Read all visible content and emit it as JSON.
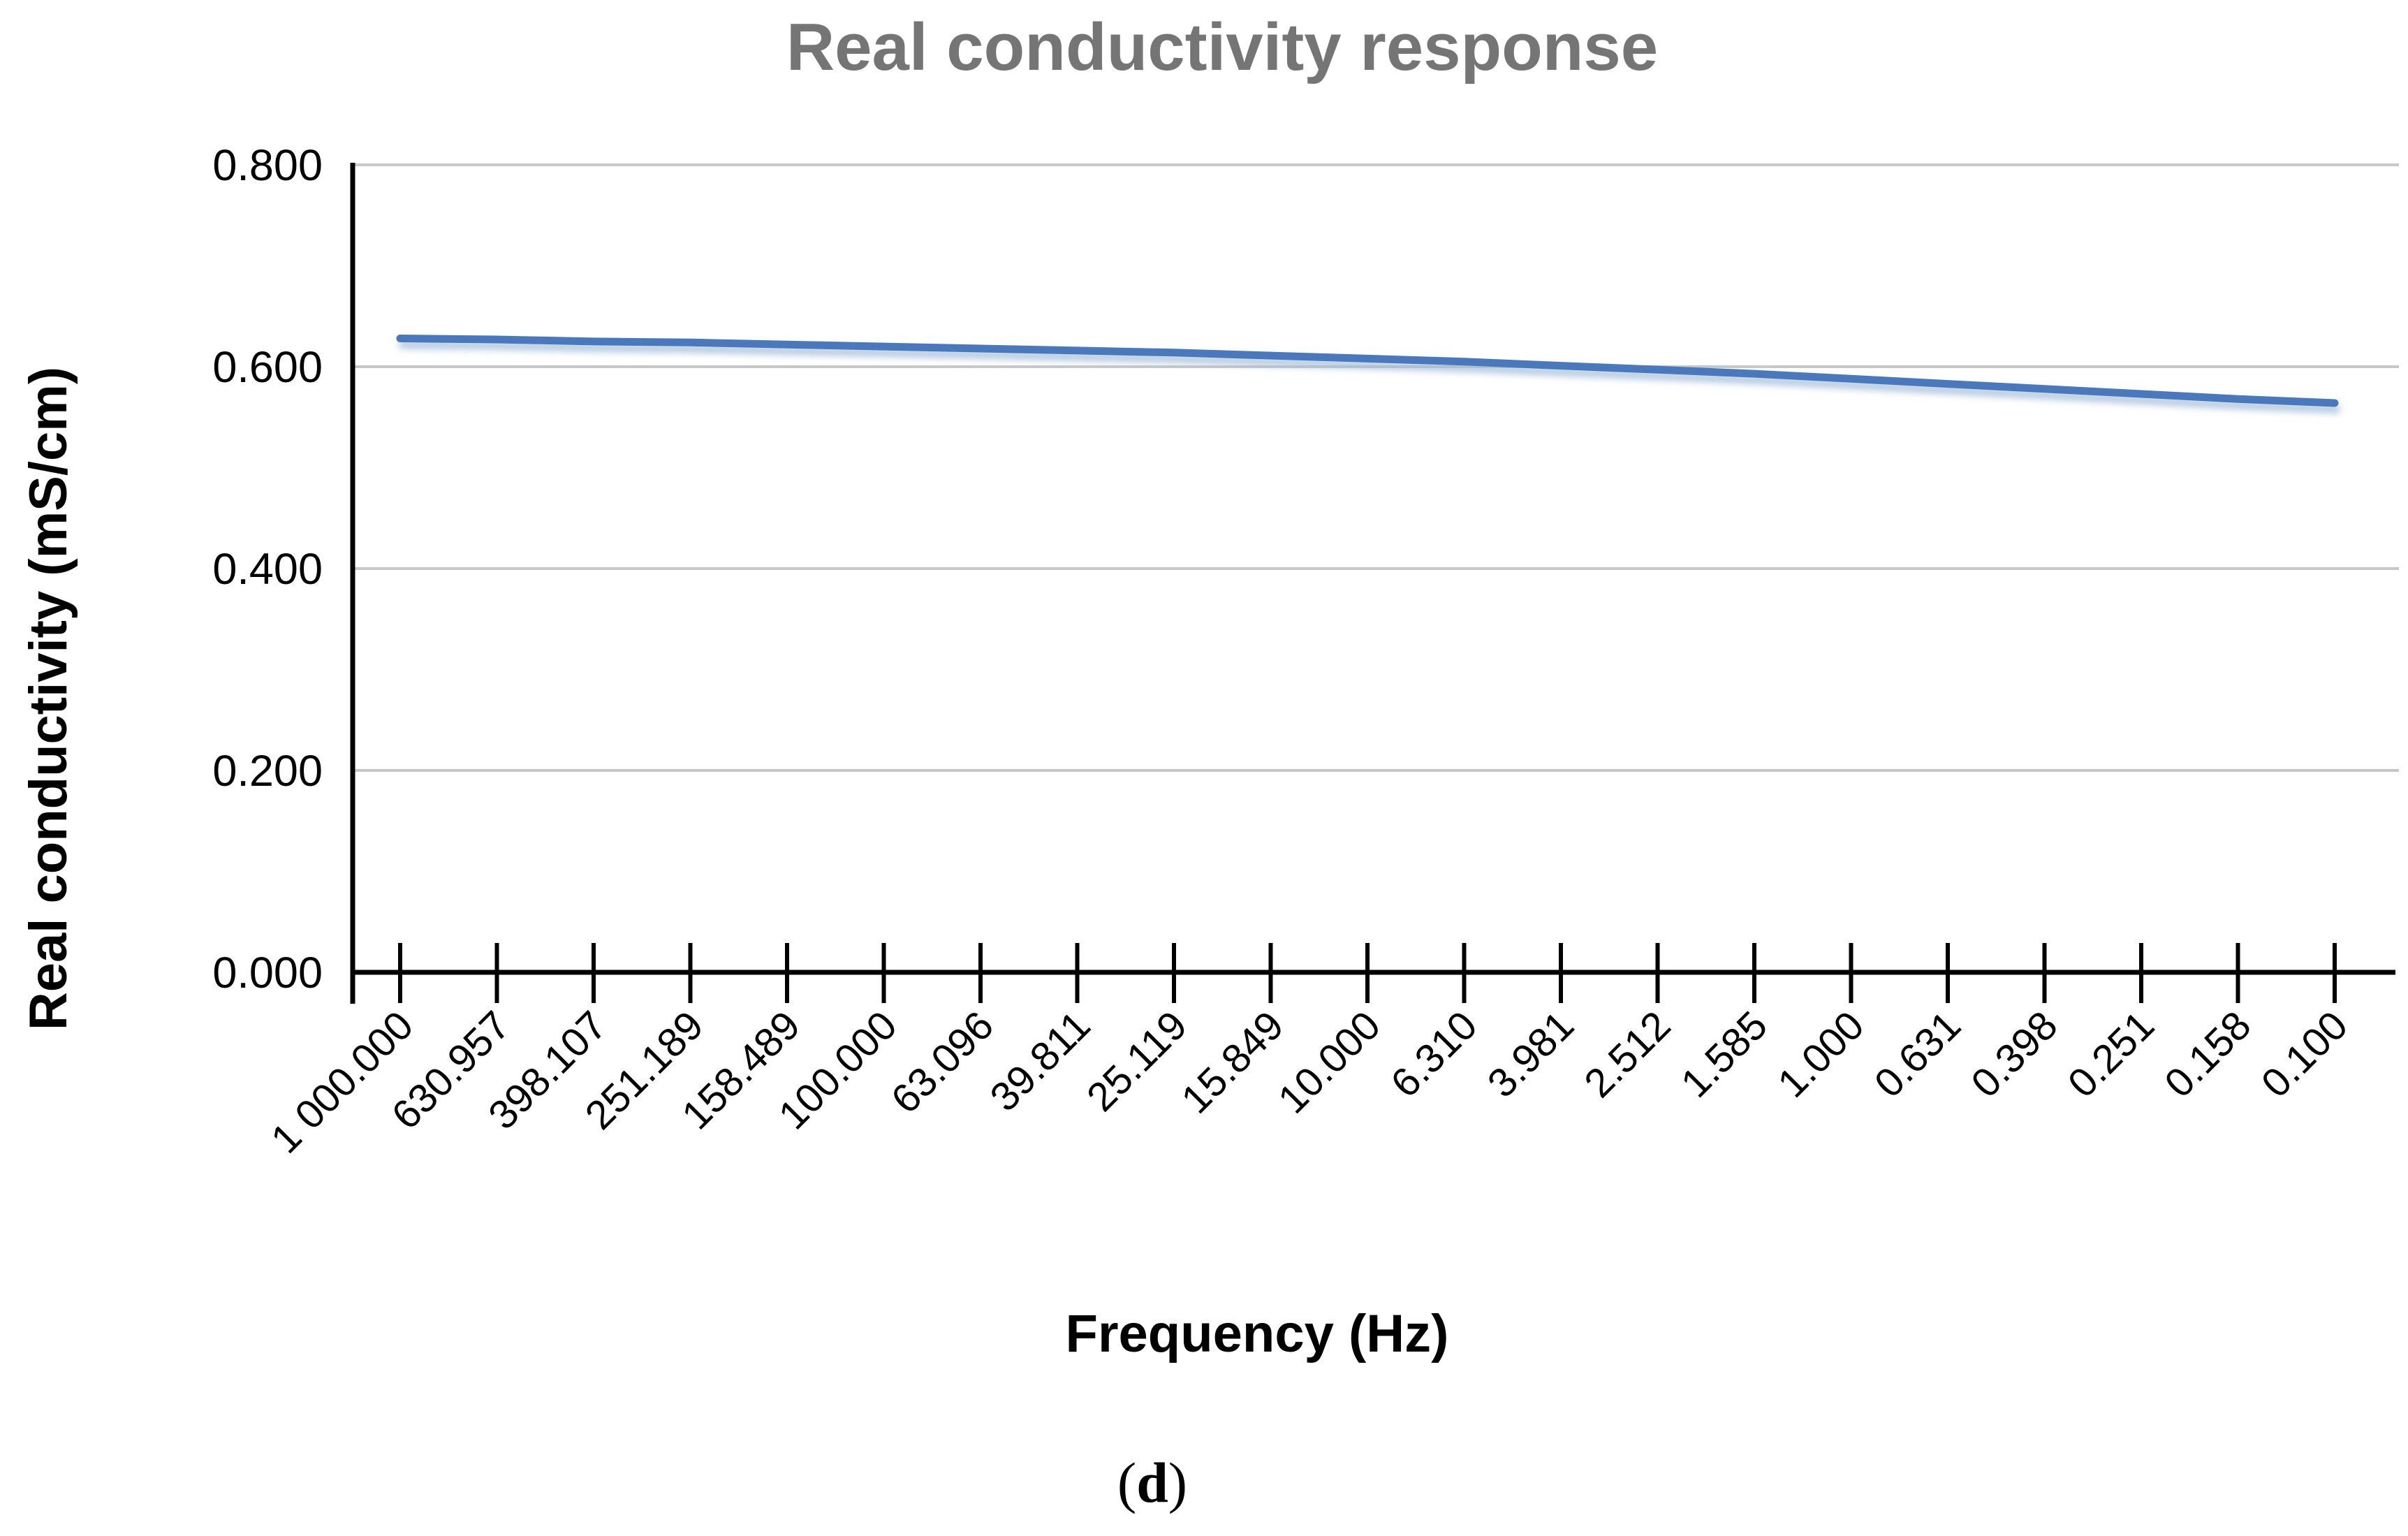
{
  "chart_data": {
    "type": "line",
    "title": "Real conductivity response",
    "xlabel": "Frequency (Hz)",
    "ylabel": "Real conductivity (mS/cm)",
    "caption": {
      "open": "(",
      "letter": "d",
      "close": ")"
    },
    "categories": [
      "1 000.000",
      "630.957",
      "398.107",
      "251.189",
      "158.489",
      "100.000",
      "63.096",
      "39.811",
      "25.119",
      "15.849",
      "10.000",
      "6.310",
      "3.981",
      "2.512",
      "1.585",
      "1.000",
      "0.631",
      "0.398",
      "0.251",
      "0.158",
      "0.100"
    ],
    "series": [
      {
        "name": "Real conductivity",
        "values": [
          0.628,
          0.627,
          0.625,
          0.624,
          0.622,
          0.62,
          0.618,
          0.616,
          0.614,
          0.611,
          0.608,
          0.605,
          0.601,
          0.597,
          0.593,
          0.588,
          0.583,
          0.578,
          0.573,
          0.568,
          0.564
        ]
      }
    ],
    "y_ticks": [
      {
        "value": 0.0,
        "label": "0.000"
      },
      {
        "value": 0.2,
        "label": "0.200"
      },
      {
        "value": 0.4,
        "label": "0.400"
      },
      {
        "value": 0.6,
        "label": "0.600"
      },
      {
        "value": 0.8,
        "label": "0.800"
      }
    ],
    "ylim": [
      0.0,
      0.8
    ],
    "x_scale": "log-spaced categories",
    "grid": "horizontal",
    "legend": "none",
    "colors": {
      "line": "#4878BC",
      "line_shadow": "#9FBBD8",
      "gridline": "#C8C8C8",
      "axis": "#000000",
      "title": "#757575",
      "text": "#000000"
    }
  }
}
